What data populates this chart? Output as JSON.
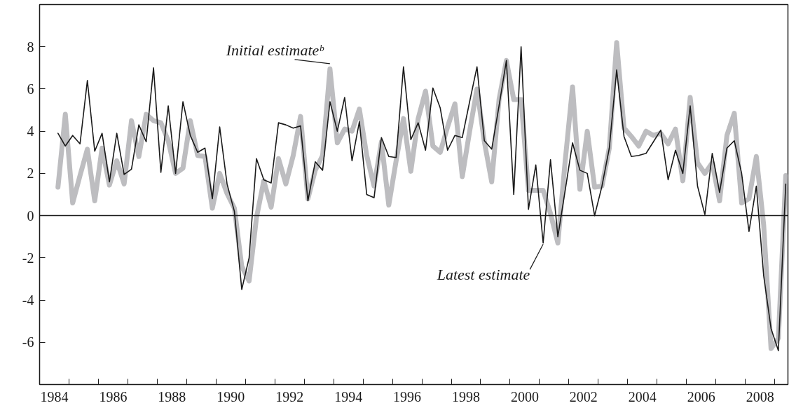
{
  "chart_data": {
    "type": "line",
    "x": [
      1984.625,
      1984.875,
      1985.125,
      1985.375,
      1985.625,
      1985.875,
      1986.125,
      1986.375,
      1986.625,
      1986.875,
      1987.125,
      1987.375,
      1987.625,
      1987.875,
      1988.125,
      1988.375,
      1988.625,
      1988.875,
      1989.125,
      1989.375,
      1989.625,
      1989.875,
      1990.125,
      1990.375,
      1990.625,
      1990.875,
      1991.125,
      1991.375,
      1991.625,
      1991.875,
      1992.125,
      1992.375,
      1992.625,
      1992.875,
      1993.125,
      1993.375,
      1993.625,
      1993.875,
      1994.125,
      1994.375,
      1994.625,
      1994.875,
      1995.125,
      1995.375,
      1995.625,
      1995.875,
      1996.125,
      1996.375,
      1996.625,
      1996.875,
      1997.125,
      1997.375,
      1997.625,
      1997.875,
      1998.125,
      1998.375,
      1998.625,
      1998.875,
      1999.125,
      1999.375,
      1999.625,
      1999.875,
      2000.125,
      2000.375,
      2000.625,
      2000.875,
      2001.125,
      2001.375,
      2001.625,
      2001.875,
      2002.125,
      2002.375,
      2002.625,
      2002.875,
      2003.125,
      2003.375,
      2003.625,
      2003.875,
      2004.125,
      2004.375,
      2004.625,
      2004.875,
      2005.125,
      2005.375,
      2005.625,
      2005.875,
      2006.125,
      2006.375,
      2006.625,
      2006.875,
      2007.125,
      2007.375,
      2007.625,
      2007.875,
      2008.125,
      2008.375,
      2008.625,
      2008.875,
      2009.125,
      2009.375
    ],
    "xlim": [
      1984,
      2009.45
    ],
    "ylim": [
      -8,
      10
    ],
    "xticks": [
      {
        "value": 1984.5,
        "label": "1984"
      },
      {
        "value": 1986.5,
        "label": "1986"
      },
      {
        "value": 1988.5,
        "label": "1988"
      },
      {
        "value": 1990.5,
        "label": "1990"
      },
      {
        "value": 1992.5,
        "label": "1992"
      },
      {
        "value": 1994.5,
        "label": "1994"
      },
      {
        "value": 1996.5,
        "label": "1996"
      },
      {
        "value": 1998.5,
        "label": "1998"
      },
      {
        "value": 2000.5,
        "label": "2000"
      },
      {
        "value": 2002.5,
        "label": "2002"
      },
      {
        "value": 2004.5,
        "label": "2004"
      },
      {
        "value": 2006.5,
        "label": "2006"
      },
      {
        "value": 2008.5,
        "label": "2008"
      },
      {
        "value": 1985,
        "label": null
      },
      {
        "value": 1986,
        "label": null
      },
      {
        "value": 1987,
        "label": null
      },
      {
        "value": 1988,
        "label": null
      },
      {
        "value": 1989,
        "label": null
      },
      {
        "value": 1990,
        "label": null
      },
      {
        "value": 1991,
        "label": null
      },
      {
        "value": 1992,
        "label": null
      },
      {
        "value": 1993,
        "label": null
      },
      {
        "value": 1994,
        "label": null
      },
      {
        "value": 1995,
        "label": null
      },
      {
        "value": 1996,
        "label": null
      },
      {
        "value": 1997,
        "label": null
      },
      {
        "value": 1998,
        "label": null
      },
      {
        "value": 1999,
        "label": null
      },
      {
        "value": 2000,
        "label": null
      },
      {
        "value": 2001,
        "label": null
      },
      {
        "value": 2002,
        "label": null
      },
      {
        "value": 2003,
        "label": null
      },
      {
        "value": 2004,
        "label": null
      },
      {
        "value": 2005,
        "label": null
      },
      {
        "value": 2006,
        "label": null
      },
      {
        "value": 2007,
        "label": null
      },
      {
        "value": 2008,
        "label": null
      },
      {
        "value": 2009,
        "label": null
      }
    ],
    "yticks": [
      -6,
      -4,
      -2,
      0,
      2,
      4,
      6,
      8
    ],
    "ref_lines": [
      {
        "axis": "y",
        "value": 0,
        "color": "#1a1a1a"
      }
    ],
    "series": [
      {
        "name": "Initial estimateᵇ",
        "color": "#bdbdc0",
        "values": [
          1.35,
          4.8,
          0.6,
          1.9,
          3.15,
          0.7,
          3.2,
          1.45,
          2.6,
          1.5,
          4.5,
          2.8,
          4.8,
          4.5,
          4.4,
          3.55,
          2.0,
          2.25,
          4.5,
          2.85,
          2.8,
          0.35,
          2.0,
          1.05,
          0.35,
          -2.4,
          -3.1,
          -0.1,
          1.65,
          0.4,
          2.7,
          1.5,
          2.85,
          4.7,
          0.8,
          2.15,
          2.85,
          6.95,
          3.45,
          4.1,
          4.0,
          5.05,
          2.85,
          1.4,
          3.5,
          0.5,
          2.6,
          4.6,
          2.1,
          4.6,
          5.9,
          3.3,
          3.0,
          4.2,
          5.3,
          1.85,
          4.0,
          6.0,
          3.5,
          1.6,
          5.5,
          7.35,
          5.5,
          5.5,
          1.2,
          1.2,
          1.2,
          0.1,
          -1.3,
          2.6,
          6.1,
          1.25,
          4.0,
          1.35,
          1.4,
          3.2,
          8.2,
          4.15,
          3.75,
          3.3,
          4.0,
          3.8,
          3.9,
          3.4,
          4.1,
          1.65,
          5.6,
          2.5,
          2.0,
          2.5,
          0.7,
          3.8,
          4.85,
          0.6,
          0.8,
          2.8,
          -0.45,
          -6.3,
          -5.8,
          1.9
        ]
      },
      {
        "name": "Latest estimate",
        "color": "#1a1a1a",
        "values": [
          3.9,
          3.3,
          3.8,
          3.4,
          6.4,
          3.05,
          3.9,
          1.6,
          3.9,
          1.95,
          2.2,
          4.3,
          3.5,
          7.0,
          2.05,
          5.2,
          2.0,
          5.4,
          3.8,
          3.0,
          3.2,
          0.8,
          4.2,
          1.5,
          0.2,
          -3.5,
          -2.0,
          2.7,
          1.7,
          1.55,
          4.4,
          4.3,
          4.15,
          4.25,
          0.7,
          2.55,
          2.15,
          5.4,
          4.0,
          5.6,
          2.6,
          4.45,
          1.0,
          0.85,
          3.7,
          2.8,
          2.75,
          7.05,
          3.6,
          4.4,
          3.1,
          6.05,
          5.1,
          3.1,
          3.8,
          3.7,
          5.4,
          7.05,
          3.55,
          3.15,
          5.2,
          7.35,
          1.0,
          8.0,
          0.3,
          2.4,
          -1.3,
          2.65,
          -1.0,
          1.2,
          3.45,
          2.15,
          2.0,
          0.0,
          1.4,
          3.2,
          6.9,
          3.75,
          2.8,
          2.85,
          2.95,
          3.5,
          4.05,
          1.7,
          3.1,
          2.0,
          5.2,
          1.4,
          0.05,
          2.95,
          1.1,
          3.2,
          3.55,
          2.0,
          -0.75,
          1.4,
          -2.85,
          -5.35,
          -6.4,
          1.5
        ]
      }
    ]
  }
}
